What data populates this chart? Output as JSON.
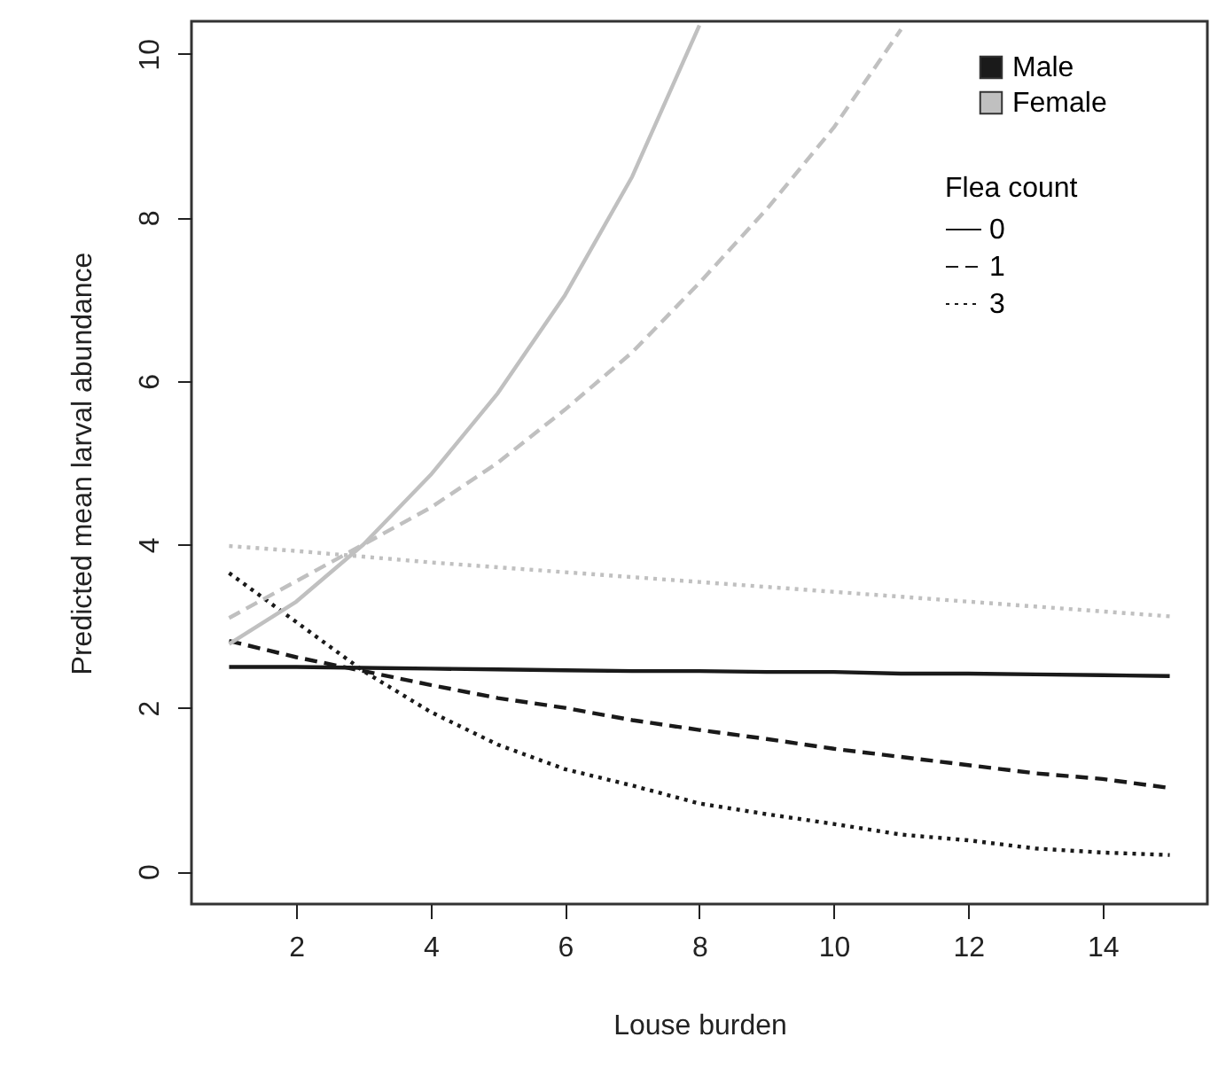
{
  "chart_data": {
    "type": "line",
    "xlabel": "Louse burden",
    "ylabel": "Predicted mean larval abundance",
    "legend_title": "Flea count",
    "legend": "top right",
    "grid": false,
    "annotations": [
      "0",
      "1",
      "3"
    ],
    "x": [
      1,
      2,
      3,
      4,
      5,
      6,
      7,
      8,
      9,
      10,
      11,
      12,
      13,
      14,
      15
    ],
    "xlim": [
      0.44,
      15.56
    ],
    "xticks": [
      2,
      4,
      6,
      8,
      10,
      12,
      14
    ],
    "ylim": [
      -0.4,
      10.4
    ],
    "yticks": [
      0,
      2,
      4,
      6,
      8,
      10
    ],
    "series": [
      {
        "name": "Male",
        "line_style": "solid",
        "color": "#1a1a1a",
        "values": [
          2.5,
          2.5,
          2.49,
          2.48,
          2.47,
          2.46,
          2.45,
          2.45,
          2.44,
          2.44,
          2.42,
          2.42,
          2.41,
          2.4,
          2.39
        ]
      },
      {
        "line_style": "dashed",
        "color": "#1a1a1a",
        "values": [
          2.82,
          2.62,
          2.45,
          2.28,
          2.12,
          2.0,
          1.85,
          1.73,
          1.62,
          1.5,
          1.4,
          1.3,
          1.2,
          1.13,
          1.02
        ]
      },
      {
        "line_style": "dotted",
        "color": "#1a1a1a",
        "values": [
          3.65,
          3.05,
          2.45,
          1.95,
          1.55,
          1.25,
          1.05,
          0.83,
          0.7,
          0.58,
          0.45,
          0.38,
          0.28,
          0.23,
          0.2
        ]
      },
      {
        "name": "Female",
        "line_style": "solid",
        "color": "#c0c0c0",
        "values": [
          2.78,
          3.3,
          4.0,
          4.85,
          5.85,
          7.05,
          8.5,
          10.35,
          null,
          null,
          null,
          null,
          null,
          null,
          null
        ]
      },
      {
        "line_style": "dashed",
        "color": "#c0c0c0",
        "values": [
          3.1,
          3.55,
          4.0,
          4.45,
          5.0,
          5.65,
          6.35,
          7.2,
          8.1,
          9.1,
          10.3,
          null,
          null,
          null,
          null
        ]
      },
      {
        "line_style": "dotted",
        "color": "#c0c0c0",
        "values": [
          3.98,
          3.92,
          3.85,
          3.78,
          3.72,
          3.66,
          3.6,
          3.54,
          3.48,
          3.42,
          3.36,
          3.3,
          3.24,
          3.18,
          3.12
        ]
      }
    ]
  }
}
